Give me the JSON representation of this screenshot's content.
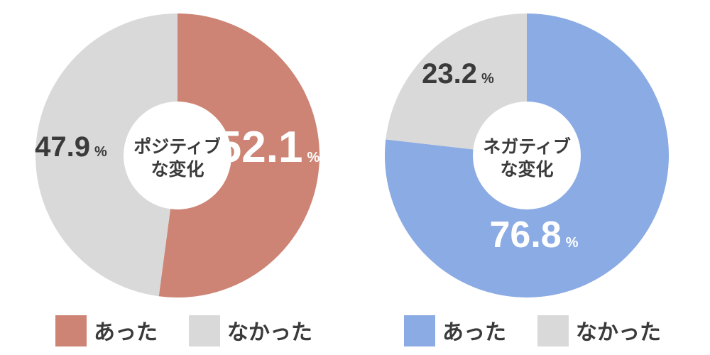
{
  "chart_data": [
    {
      "type": "pie",
      "center_label": [
        "ポジティブ",
        "な変化"
      ],
      "unit": "%",
      "slices": [
        {
          "label": "あった",
          "value": 52.1,
          "value_text": "52.1",
          "color": "#cd8474",
          "text_color": "#ffffff"
        },
        {
          "label": "なかった",
          "value": 47.9,
          "value_text": "47.9",
          "color": "#d9d9d9",
          "text_color": "#3a3a3a"
        }
      ],
      "legend": [
        "あった",
        "なかった"
      ]
    },
    {
      "type": "pie",
      "center_label": [
        "ネガティブ",
        "な変化"
      ],
      "unit": "%",
      "slices": [
        {
          "label": "あった",
          "value": 76.8,
          "value_text": "76.8",
          "color": "#8aabe3",
          "text_color": "#ffffff"
        },
        {
          "label": "なかった",
          "value": 23.2,
          "value_text": "23.2",
          "color": "#d9d9d9",
          "text_color": "#3a3a3a"
        }
      ],
      "legend": [
        "あった",
        "なかった"
      ]
    }
  ]
}
